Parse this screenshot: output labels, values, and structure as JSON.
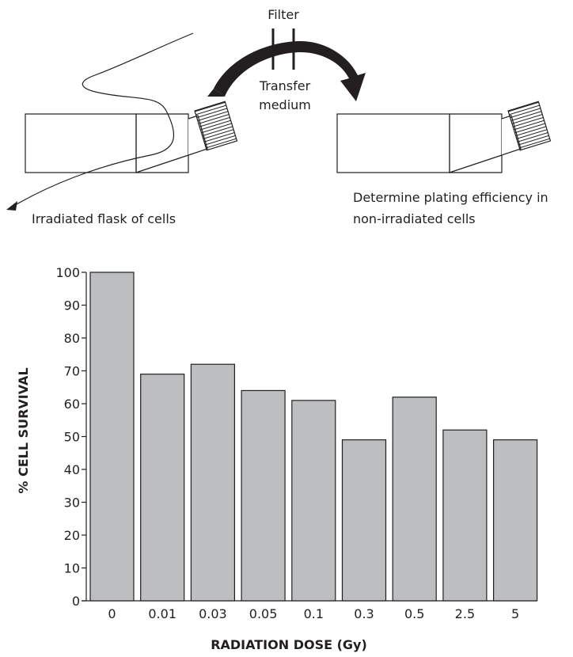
{
  "diagram": {
    "filter_label": "Filter",
    "transfer_line1": "Transfer",
    "transfer_line2": "medium",
    "irradiated_label": "Irradiated flask of cells",
    "determine_line1": "Determine plating efficiency in",
    "determine_line2": "non-irradiated cells"
  },
  "chart_data": {
    "type": "bar",
    "categories": [
      "0",
      "0.01",
      "0.03",
      "0.05",
      "0.1",
      "0.3",
      "0.5",
      "2.5",
      "5"
    ],
    "values": [
      100,
      69,
      72,
      64,
      61,
      49,
      62,
      52,
      49
    ],
    "xlabel": "RADIATION DOSE (Gy)",
    "ylabel": "% CELL SURVIVAL",
    "ylim": [
      0,
      100
    ],
    "yticks": [
      0,
      10,
      20,
      30,
      40,
      50,
      60,
      70,
      80,
      90,
      100
    ],
    "grid": false,
    "bar_color": "#bcbec0",
    "bar_edge_color": "#231f20"
  }
}
